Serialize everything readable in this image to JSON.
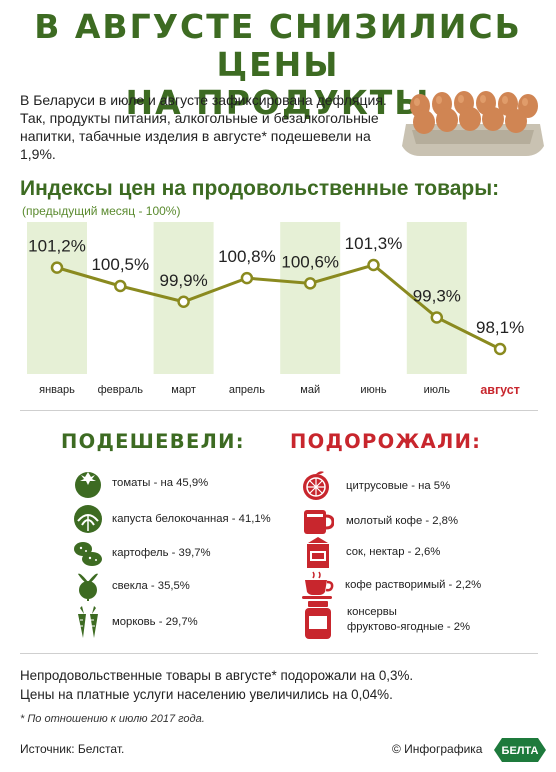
{
  "header": {
    "title_line1": "В АВГУСТЕ СНИЗИЛИСЬ ЦЕНЫ",
    "title_line2": "НА ПРОДУКТЫ",
    "intro": "В Беларуси в июле и августе зафиксирована дефляция. Так, продукты питания, алкогольные и безалкогольные напитки, табачные изделия в августе* подешевели на 1,9%."
  },
  "chart_section": {
    "title": "Индексы цен на продовольственные товары:",
    "subtitle": "(предыдущий месяц - 100%)"
  },
  "chart_data": {
    "type": "line",
    "categories": [
      "январь",
      "февраль",
      "март",
      "апрель",
      "май",
      "июнь",
      "июль",
      "август"
    ],
    "values": [
      101.2,
      100.5,
      99.9,
      100.8,
      100.6,
      101.3,
      99.3,
      98.1
    ],
    "value_labels": [
      "101,2%",
      "100,5%",
      "99,9%",
      "100,8%",
      "100,6%",
      "101,3%",
      "99,3%",
      "98,1%"
    ],
    "highlight_category": "август",
    "series_color": "#8a8a1f",
    "band_color": "#e6f0d6",
    "highlight_color": "#c8262d"
  },
  "cheaper": {
    "title": "ПОДЕШЕВЕЛИ:",
    "color": "#3d6b22",
    "items": [
      {
        "icon": "tomato-icon",
        "text": "томаты - на 45,9%"
      },
      {
        "icon": "cabbage-icon",
        "text": "капуста белокочанная - 41,1%"
      },
      {
        "icon": "potato-icon",
        "text": "картофель - 39,7%"
      },
      {
        "icon": "beet-icon",
        "text": "свекла - 35,5%"
      },
      {
        "icon": "carrot-icon",
        "text": "морковь - 29,7%"
      }
    ]
  },
  "pricier": {
    "title": "ПОДОРОЖАЛИ:",
    "color": "#c8262d",
    "items": [
      {
        "icon": "citrus-icon",
        "text": "цитрусовые - на 5%"
      },
      {
        "icon": "ground-coffee-icon",
        "text": "молотый кофе - 2,8%"
      },
      {
        "icon": "juice-box-icon",
        "text": "сок, нектар - 2,6%"
      },
      {
        "icon": "coffee-cup-icon",
        "text": "кофе растворимый - 2,2%"
      },
      {
        "icon": "jar-icon",
        "text": "консервы",
        "text2": "фруктово-ягодные - 2%"
      }
    ]
  },
  "footer": {
    "line1": "Непродовольственные товары в августе* подорожали на 0,3%.",
    "line2": "Цены на платные услуги населению увеличились на 0,04%.",
    "note": "* По отношению к июлю 2017 года.",
    "source": "Источник: Белстат.",
    "credit": "© Инфографика",
    "logo_text": "БЕЛТА"
  }
}
